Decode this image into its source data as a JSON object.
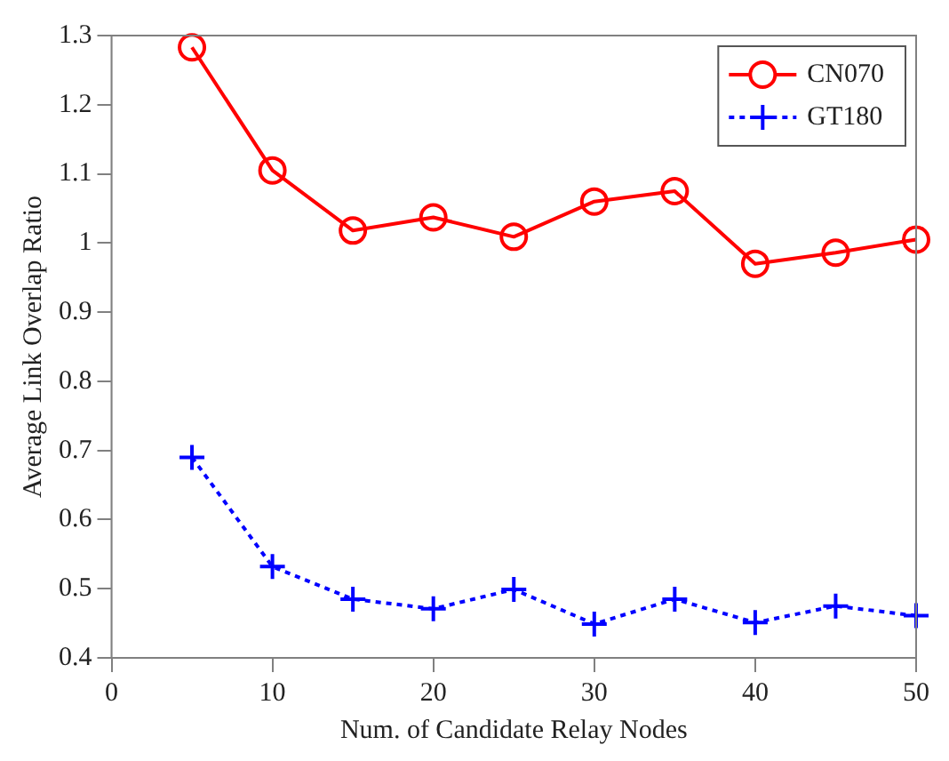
{
  "chart_data": {
    "type": "line",
    "xlabel": "Num. of Candidate Relay Nodes",
    "ylabel": "Average Link Overlap Ratio",
    "x": [
      5,
      10,
      15,
      20,
      25,
      30,
      35,
      40,
      45,
      50
    ],
    "series": [
      {
        "name": "CN070",
        "color": "#ff0000",
        "marker": "circle",
        "line_style": "solid",
        "values": [
          1.283,
          1.105,
          1.018,
          1.037,
          1.009,
          1.06,
          1.075,
          0.97,
          0.986,
          1.005
        ]
      },
      {
        "name": "GT180",
        "color": "#0000ff",
        "marker": "cross",
        "line_style": "dotted",
        "values": [
          0.69,
          0.532,
          0.485,
          0.471,
          0.499,
          0.449,
          0.485,
          0.451,
          0.475,
          0.461
        ]
      }
    ],
    "xlim": [
      0,
      50
    ],
    "xticks": [
      0,
      10,
      20,
      30,
      40,
      50
    ],
    "ylim": [
      0.4,
      1.3
    ],
    "yticks": [
      0.4,
      0.5,
      0.6,
      0.7,
      0.8,
      0.9,
      1,
      1.1,
      1.2,
      1.3
    ],
    "grid": false,
    "legend": "top right"
  }
}
